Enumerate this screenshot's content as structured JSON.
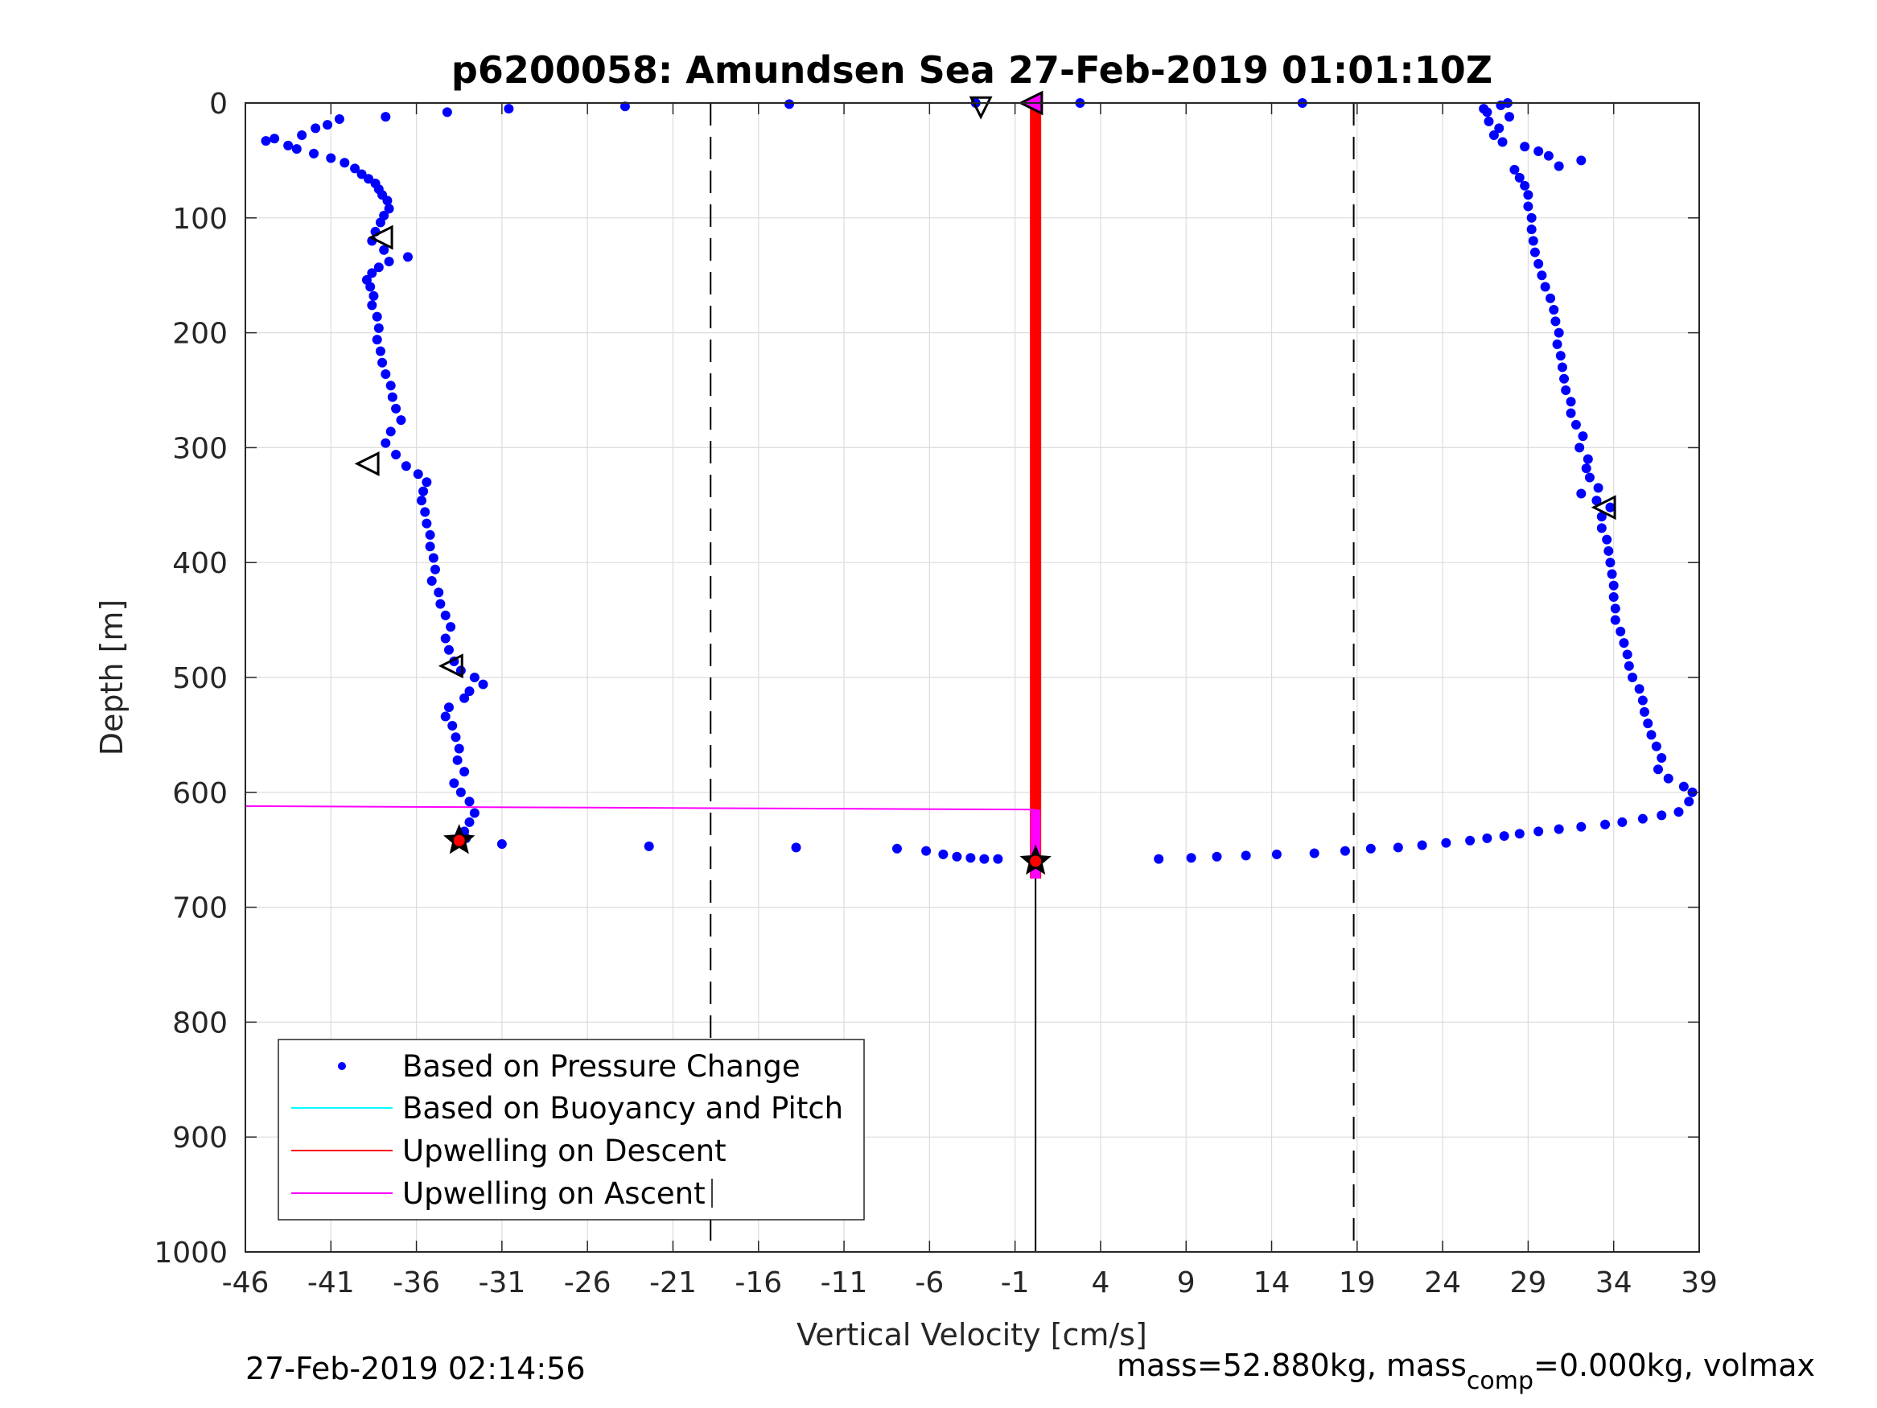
{
  "chart_data": {
    "type": "scatter",
    "title": "p6200058: Amundsen Sea 27-Feb-2019 01:01:10Z",
    "xlabel": "Vertical Velocity [cm/s]",
    "ylabel": "Depth [m]",
    "xlim": [
      -46,
      39
    ],
    "ylim": [
      0,
      1000
    ],
    "y_reversed": true,
    "grid": true,
    "x_ticks": [
      -46,
      -41,
      -36,
      -31,
      -26,
      -21,
      -16,
      -11,
      -6,
      -1,
      4,
      9,
      14,
      19,
      24,
      29,
      34,
      39
    ],
    "x_tick_labels": [
      "-46",
      "-41",
      "-36",
      "-31",
      "-26",
      "-21",
      "-16",
      "-11",
      "-6",
      "-1",
      "4",
      "9",
      "14",
      "19",
      "24",
      "29",
      "34",
      "39"
    ],
    "y_ticks": [
      0,
      100,
      200,
      300,
      400,
      500,
      600,
      700,
      800,
      900,
      1000
    ],
    "y_tick_labels": [
      "0",
      "100",
      "200",
      "300",
      "400",
      "500",
      "600",
      "700",
      "800",
      "900",
      "1000"
    ],
    "vertical_dashed_lines": [
      -18.8,
      18.8
    ],
    "legend": {
      "placement": "bottom-left",
      "entries": [
        {
          "label": "Based on Pressure Change",
          "color": "#0000ff",
          "marker": "dot"
        },
        {
          "label": "Based on Buoyancy and Pitch",
          "color": "#00ffff",
          "marker": "line"
        },
        {
          "label": "Upwelling on Descent",
          "color": "#ff0000",
          "marker": "line"
        },
        {
          "label": "Upwelling on Ascent",
          "color": "#ff00ff",
          "marker": "line"
        }
      ]
    },
    "series": [
      {
        "name": "Based on Pressure Change",
        "color": "#0000ff",
        "kind": "dots",
        "points": [
          [
            -44.8,
            33
          ],
          [
            -44.3,
            31
          ],
          [
            -43.5,
            37
          ],
          [
            -42.7,
            28
          ],
          [
            -41.9,
            22
          ],
          [
            -41.2,
            19
          ],
          [
            -40.5,
            14
          ],
          [
            -37.8,
            12
          ],
          [
            -34.2,
            8
          ],
          [
            -30.6,
            5
          ],
          [
            -23.8,
            3
          ],
          [
            -14.2,
            1
          ],
          [
            -3.3,
            0
          ],
          [
            2.8,
            0
          ],
          [
            15.8,
            0
          ],
          [
            -43,
            40
          ],
          [
            -42,
            44
          ],
          [
            -41,
            48
          ],
          [
            -40.2,
            52
          ],
          [
            -39.6,
            57
          ],
          [
            -39.2,
            62
          ],
          [
            -38.8,
            66
          ],
          [
            -38.4,
            70
          ],
          [
            -38.2,
            75
          ],
          [
            -38,
            80
          ],
          [
            -37.7,
            85
          ],
          [
            -37.6,
            92
          ],
          [
            -37.9,
            98
          ],
          [
            -38.1,
            104
          ],
          [
            -38.4,
            112
          ],
          [
            -38.6,
            120
          ],
          [
            -37.9,
            128
          ],
          [
            -36.5,
            134
          ],
          [
            -37.6,
            138
          ],
          [
            -38.2,
            143
          ],
          [
            -38.6,
            148
          ],
          [
            -38.9,
            154
          ],
          [
            -38.7,
            160
          ],
          [
            -38.5,
            168
          ],
          [
            -38.6,
            176
          ],
          [
            -38.3,
            186
          ],
          [
            -38.2,
            196
          ],
          [
            -38.3,
            206
          ],
          [
            -38.1,
            216
          ],
          [
            -38.0,
            226
          ],
          [
            -37.8,
            236
          ],
          [
            -37.5,
            246
          ],
          [
            -37.4,
            256
          ],
          [
            -37.2,
            266
          ],
          [
            -36.9,
            276
          ],
          [
            -37.5,
            286
          ],
          [
            -37.8,
            296
          ],
          [
            -37.2,
            306
          ],
          [
            -36.6,
            316
          ],
          [
            -35.9,
            323
          ],
          [
            -35.4,
            330
          ],
          [
            -35.6,
            338
          ],
          [
            -35.7,
            346
          ],
          [
            -35.5,
            356
          ],
          [
            -35.4,
            366
          ],
          [
            -35.2,
            376
          ],
          [
            -35.2,
            386
          ],
          [
            -35.0,
            396
          ],
          [
            -34.9,
            406
          ],
          [
            -35.1,
            416
          ],
          [
            -34.7,
            426
          ],
          [
            -34.6,
            436
          ],
          [
            -34.3,
            446
          ],
          [
            -34.0,
            456
          ],
          [
            -34.3,
            466
          ],
          [
            -34.1,
            476
          ],
          [
            -33.8,
            486
          ],
          [
            -33.4,
            494
          ],
          [
            -32.6,
            500
          ],
          [
            -32.1,
            506
          ],
          [
            -32.9,
            512
          ],
          [
            -33.2,
            518
          ],
          [
            -34.1,
            526
          ],
          [
            -34.3,
            534
          ],
          [
            -33.9,
            542
          ],
          [
            -33.7,
            552
          ],
          [
            -33.5,
            562
          ],
          [
            -33.6,
            572
          ],
          [
            -33.2,
            582
          ],
          [
            -33.8,
            592
          ],
          [
            -33.4,
            600
          ],
          [
            -32.9,
            608
          ],
          [
            -32.6,
            618
          ],
          [
            -32.9,
            626
          ],
          [
            -33.2,
            634
          ],
          [
            -33.1,
            640
          ],
          [
            -31.0,
            645
          ],
          [
            -22.4,
            647
          ],
          [
            -13.8,
            648
          ],
          [
            -7.9,
            649
          ],
          [
            -6.2,
            651
          ],
          [
            -5.2,
            654
          ],
          [
            -4.4,
            656
          ],
          [
            -3.6,
            657
          ],
          [
            -2.8,
            658
          ],
          [
            -2.0,
            658
          ],
          [
            7.4,
            658
          ],
          [
            9.3,
            657
          ],
          [
            10.8,
            656
          ],
          [
            12.5,
            655
          ],
          [
            14.3,
            654
          ],
          [
            16.5,
            653
          ],
          [
            18.3,
            651
          ],
          [
            19.8,
            649
          ],
          [
            21.4,
            648
          ],
          [
            22.8,
            646
          ],
          [
            24.2,
            644
          ],
          [
            25.6,
            642
          ],
          [
            26.6,
            640
          ],
          [
            27.6,
            638
          ],
          [
            28.5,
            636
          ],
          [
            29.6,
            634
          ],
          [
            30.8,
            632
          ],
          [
            32.1,
            630
          ],
          [
            33.5,
            628
          ],
          [
            34.5,
            626
          ],
          [
            35.7,
            623
          ],
          [
            36.8,
            620
          ],
          [
            37.8,
            617
          ],
          [
            38.4,
            608
          ],
          [
            38.6,
            600
          ],
          [
            38.1,
            595
          ],
          [
            37.2,
            588
          ],
          [
            36.6,
            580
          ],
          [
            36.8,
            570
          ],
          [
            36.5,
            560
          ],
          [
            36.2,
            550
          ],
          [
            36.0,
            540
          ],
          [
            35.8,
            530
          ],
          [
            35.7,
            520
          ],
          [
            35.5,
            510
          ],
          [
            35.1,
            500
          ],
          [
            34.9,
            490
          ],
          [
            34.8,
            480
          ],
          [
            34.6,
            470
          ],
          [
            34.4,
            460
          ],
          [
            34.1,
            450
          ],
          [
            34.1,
            440
          ],
          [
            34.0,
            430
          ],
          [
            34.0,
            420
          ],
          [
            33.9,
            410
          ],
          [
            33.8,
            400
          ],
          [
            33.7,
            390
          ],
          [
            33.6,
            380
          ],
          [
            33.3,
            370
          ],
          [
            33.3,
            360
          ],
          [
            33.8,
            352
          ],
          [
            33.0,
            346
          ],
          [
            32.1,
            340
          ],
          [
            33.1,
            335
          ],
          [
            32.6,
            326
          ],
          [
            32.4,
            318
          ],
          [
            32.5,
            310
          ],
          [
            32.0,
            300
          ],
          [
            32.2,
            290
          ],
          [
            31.8,
            280
          ],
          [
            31.5,
            270
          ],
          [
            31.5,
            260
          ],
          [
            31.2,
            250
          ],
          [
            31.1,
            240
          ],
          [
            31.0,
            230
          ],
          [
            30.9,
            220
          ],
          [
            30.7,
            210
          ],
          [
            30.8,
            200
          ],
          [
            30.6,
            190
          ],
          [
            30.5,
            180
          ],
          [
            30.3,
            170
          ],
          [
            30.0,
            160
          ],
          [
            29.8,
            150
          ],
          [
            29.6,
            140
          ],
          [
            29.4,
            130
          ],
          [
            29.3,
            120
          ],
          [
            29.2,
            110
          ],
          [
            29.2,
            100
          ],
          [
            29.0,
            90
          ],
          [
            29.0,
            80
          ],
          [
            28.8,
            72
          ],
          [
            28.5,
            65
          ],
          [
            28.2,
            58
          ],
          [
            30.8,
            55
          ],
          [
            32.1,
            50
          ],
          [
            30.2,
            46
          ],
          [
            29.6,
            42
          ],
          [
            28.8,
            38
          ],
          [
            27.5,
            34
          ],
          [
            27.0,
            28
          ],
          [
            27.3,
            22
          ],
          [
            26.7,
            16
          ],
          [
            27.9,
            12
          ],
          [
            26.6,
            8
          ],
          [
            27.4,
            2
          ],
          [
            27.8,
            0
          ],
          [
            26.4,
            5
          ]
        ]
      },
      {
        "name": "Upwelling on Descent",
        "color": "#ff0000",
        "kind": "thick-vertical",
        "x": 0.2,
        "y_range": [
          0,
          675
        ]
      },
      {
        "name": "Upwelling on Ascent",
        "color": "#ff00ff",
        "kind": "polyline",
        "segments": [
          [
            [
              -46,
              0
            ],
            [
              0.2,
              0
            ]
          ],
          [
            [
              -46,
              612
            ],
            [
              0.2,
              615
            ]
          ],
          [
            [
              0.2,
              615
            ],
            [
              0.2,
              675
            ]
          ]
        ]
      }
    ],
    "reference_line": {
      "x": 0.2,
      "y_range": [
        0,
        1000
      ],
      "color": "#000000"
    },
    "markers": [
      {
        "type": "triangle-left-open",
        "x": -38.0,
        "y": 117
      },
      {
        "type": "triangle-left-open",
        "x": -38.8,
        "y": 314
      },
      {
        "type": "triangle-left-open",
        "x": -33.9,
        "y": 490
      },
      {
        "type": "triangle-left-open",
        "x": 33.5,
        "y": 352
      },
      {
        "type": "triangle-down-open",
        "x": -3.0,
        "y": 3
      },
      {
        "type": "triangle-left-magenta",
        "x": 0.0,
        "y": 0
      },
      {
        "type": "star-red",
        "x": -33.5,
        "y": 642
      },
      {
        "type": "star-red",
        "x": 0.2,
        "y": 660
      }
    ],
    "footer_left": "27-Feb-2019 02:14:56",
    "footer_right_main": "mass=52.880kg, mass",
    "footer_right_sub": "comp",
    "footer_right_rest": "=0.000kg, volmax"
  }
}
